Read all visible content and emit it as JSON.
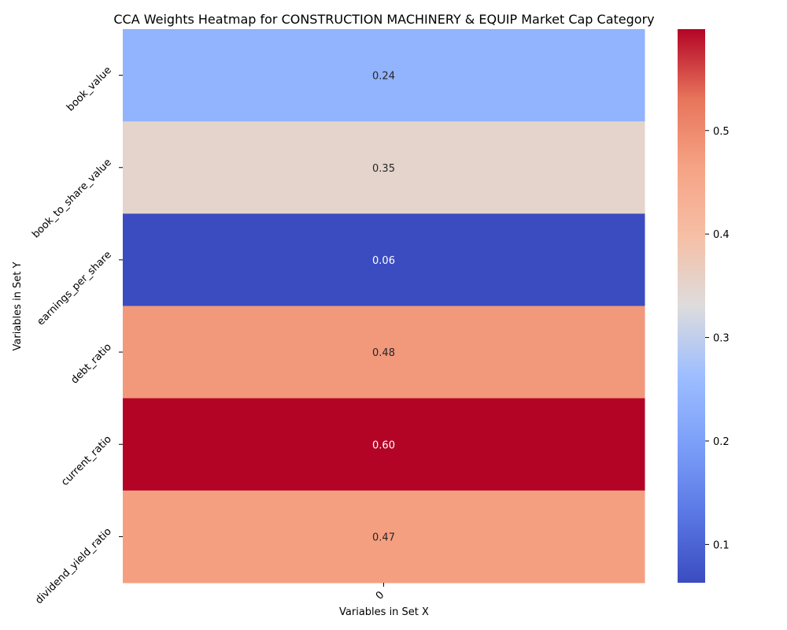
{
  "chart_data": {
    "type": "heatmap",
    "title": "CCA Weights Heatmap for CONSTRUCTION MACHINERY & EQUIP Market Cap Category",
    "xlabel": "Variables in Set X",
    "ylabel": "Variables in Set Y",
    "x_categories": [
      "0"
    ],
    "y_categories": [
      "book_value",
      "book_to_share_value",
      "earnings_per_share",
      "debt_ratio",
      "current_ratio",
      "dividend_yield_ratio"
    ],
    "values": [
      [
        0.24
      ],
      [
        0.35
      ],
      [
        0.06
      ],
      [
        0.48
      ],
      [
        0.6
      ],
      [
        0.47
      ]
    ],
    "value_labels": [
      "0.24",
      "0.35",
      "0.06",
      "0.48",
      "0.60",
      "0.47"
    ],
    "colormap": "coolwarm",
    "colorbar": {
      "vmin": 0.063,
      "vmax": 0.598,
      "ticks": [
        0.1,
        0.2,
        0.3,
        0.4,
        0.5
      ],
      "tick_labels": [
        "0.1",
        "0.2",
        "0.3",
        "0.4",
        "0.5"
      ]
    }
  }
}
